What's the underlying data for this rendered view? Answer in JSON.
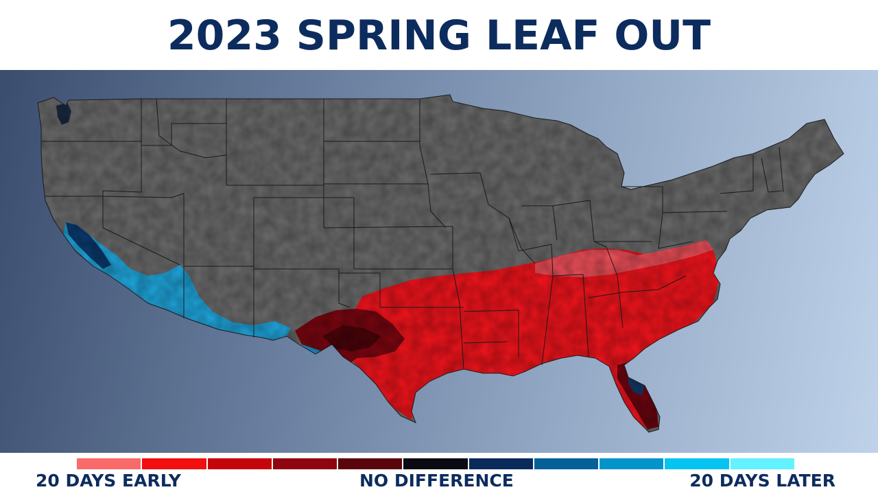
{
  "title": "2023 SPRING LEAF OUT",
  "legend": {
    "left_label": "20 DAYS EARLY",
    "center_label": "NO DIFFERENCE",
    "right_label": "20 DAYS LATER",
    "swatches": [
      "#f96a6a",
      "#f20f0f",
      "#c4060c",
      "#8e0510",
      "#5a040c",
      "#0a0a12",
      "#0a2a5c",
      "#05609a",
      "#0494cc",
      "#06c4f2",
      "#63f2ff"
    ]
  },
  "colors": {
    "title": "#0d2c5e",
    "land": "#6b6b6b",
    "border": "#1a1a1a",
    "early": "#f2141c",
    "early_light": "#f0505a",
    "dark": "#7a0610",
    "later": "#1fa7de"
  }
}
